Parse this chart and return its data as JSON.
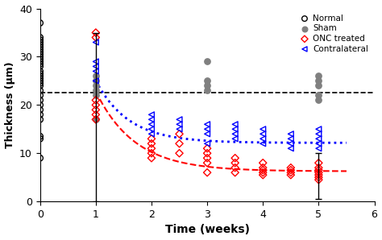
{
  "xlabel": "Time (weeks)",
  "ylabel": "Thickness (μm)",
  "xlim": [
    0,
    6
  ],
  "ylim": [
    0,
    40
  ],
  "dashed_line_y": 22.5,
  "normal_x": [
    0,
    0,
    0,
    0,
    0,
    0,
    0,
    0,
    0,
    0,
    0,
    0,
    0,
    0,
    0,
    0,
    0,
    0,
    0,
    0,
    0,
    0,
    0,
    0,
    0,
    0,
    0,
    0,
    0,
    0,
    0
  ],
  "normal_y": [
    37,
    34,
    33.5,
    33,
    32.5,
    32,
    31.5,
    31,
    30.5,
    30,
    29.5,
    29,
    28.5,
    28,
    27,
    26.5,
    26,
    25.5,
    25,
    24.5,
    24,
    23,
    22,
    21,
    20,
    19,
    18,
    17,
    13.5,
    13,
    9
  ],
  "sham_x": [
    1,
    1,
    1,
    1,
    1,
    1,
    3,
    3,
    3,
    3,
    5,
    5,
    5,
    5,
    5
  ],
  "sham_y": [
    26,
    25,
    24,
    23,
    22,
    17,
    29,
    25,
    24,
    23,
    26,
    25,
    24,
    22,
    21
  ],
  "onc_x": [
    1,
    1,
    1,
    1,
    1,
    1,
    1,
    2,
    2,
    2,
    2,
    2,
    2.5,
    2.5,
    2.5,
    3,
    3,
    3,
    3,
    3,
    3.5,
    3.5,
    3.5,
    3.5,
    4,
    4,
    4,
    4,
    4,
    4.5,
    4.5,
    4.5,
    4.5,
    5,
    5,
    5,
    5,
    5,
    5,
    5
  ],
  "onc_y": [
    35,
    34,
    21,
    20,
    19,
    18,
    17,
    13,
    12,
    11,
    10,
    9,
    14,
    12,
    10,
    11,
    10,
    9,
    8,
    6,
    9,
    8,
    7,
    6,
    8,
    7,
    6.5,
    6,
    5.5,
    7,
    6.5,
    6,
    5.5,
    8,
    7,
    6.5,
    6,
    5.5,
    5,
    4.5
  ],
  "contra_x": [
    1,
    1,
    1,
    1,
    1,
    2,
    2,
    2,
    2,
    2,
    2.5,
    2.5,
    2.5,
    3,
    3,
    3,
    3,
    3.5,
    3.5,
    3.5,
    3.5,
    4,
    4,
    4,
    4,
    4.5,
    4.5,
    4.5,
    4.5,
    5,
    5,
    5,
    5,
    5
  ],
  "contra_y": [
    33,
    29,
    28,
    27,
    25,
    18,
    17,
    16,
    15,
    14,
    17,
    16,
    15,
    16,
    15,
    14,
    12,
    16,
    15,
    14,
    13,
    15,
    14,
    13,
    12,
    14,
    13,
    12,
    11,
    15,
    14,
    13,
    12,
    11
  ],
  "onc_fit_x": [
    1.0,
    1.5,
    2.0,
    2.5,
    3.0,
    3.5,
    4.0,
    4.5,
    5.0,
    5.5
  ],
  "onc_fit_y": [
    23.0,
    14.0,
    10.0,
    8.5,
    8.0,
    7.0,
    6.5,
    6.2,
    6.0,
    5.9
  ],
  "contra_fit_x": [
    1.0,
    1.5,
    2.0,
    2.5,
    3.0,
    3.5,
    4.0,
    4.5,
    5.0,
    5.5
  ],
  "contra_fit_y": [
    25.0,
    18.0,
    14.0,
    13.2,
    12.8,
    12.5,
    12.3,
    12.2,
    12.1,
    12.0
  ],
  "errbar1_x": 1,
  "errbar1_y": 22.5,
  "errbar1_lo": 22.5,
  "errbar1_hi": 12.5,
  "errbar2_x": 5,
  "errbar2_y": 5.5,
  "errbar2_lo": 5.0,
  "errbar2_hi": 4.5,
  "normal_color": "black",
  "sham_color": "gray",
  "onc_color": "red",
  "contra_color": "blue",
  "legend_labels": [
    "Normal",
    "Sham",
    "ONC treated",
    "Contralateral"
  ]
}
